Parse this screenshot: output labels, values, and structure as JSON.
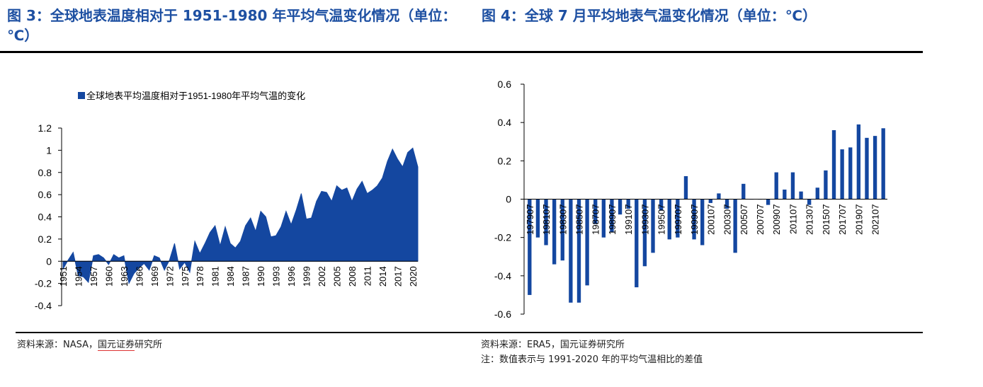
{
  "titles": {
    "fig3": "图 3：全球地表温度相对于 1951-1980 年平均气温变化情况（单位：℃）",
    "fig4": "图 4：全球 7 月平均地表气温变化情况（单位：℃）"
  },
  "sources": {
    "fig3_prefix": "资料来源：NASA，",
    "fig3_underlined": "国元证券",
    "fig3_suffix": "研究所",
    "fig4": "资料来源：ERA5，国元证券研究所",
    "fig4_note": "注：数值表示与 1991-2020 年的平均气温相比的差值"
  },
  "colors": {
    "series": "#1447a0",
    "title": "#1e50a2"
  },
  "chart_data": [
    {
      "type": "area",
      "title": "",
      "legend": "全球地表平均温度相对于1951-1980年平均气温的变化",
      "legend_position": "top-left",
      "xlabel": "",
      "ylabel": "",
      "ylim": [
        -0.4,
        1.2
      ],
      "yticks": [
        "1.2",
        "1",
        "0.8",
        "0.6",
        "0.4",
        "0.2",
        "0",
        "-0.2",
        "-0.4"
      ],
      "ytick_values": [
        1.2,
        1.0,
        0.8,
        0.6,
        0.4,
        0.2,
        0,
        -0.2,
        -0.4
      ],
      "x_tick_labels": [
        "1951",
        "1954",
        "1957",
        "1960",
        "1963",
        "1966",
        "1969",
        "1972",
        "1975",
        "1978",
        "1981",
        "1984",
        "1987",
        "1990",
        "1993",
        "1996",
        "1999",
        "2002",
        "2005",
        "2008",
        "2011",
        "2014",
        "2017",
        "2020"
      ],
      "grid": false,
      "x": [
        1951,
        1952,
        1953,
        1954,
        1955,
        1956,
        1957,
        1958,
        1959,
        1960,
        1961,
        1962,
        1963,
        1964,
        1965,
        1966,
        1967,
        1968,
        1969,
        1970,
        1971,
        1972,
        1973,
        1974,
        1975,
        1976,
        1977,
        1978,
        1979,
        1980,
        1981,
        1982,
        1983,
        1984,
        1985,
        1986,
        1987,
        1988,
        1989,
        1990,
        1991,
        1992,
        1993,
        1994,
        1995,
        1996,
        1997,
        1998,
        1999,
        2000,
        2001,
        2002,
        2003,
        2004,
        2005,
        2006,
        2007,
        2008,
        2009,
        2010,
        2011,
        2012,
        2013,
        2014,
        2015,
        2016,
        2017,
        2018,
        2019,
        2020,
        2021
      ],
      "values": [
        -0.07,
        0.01,
        0.08,
        -0.13,
        -0.14,
        -0.19,
        0.05,
        0.06,
        0.03,
        -0.03,
        0.06,
        0.03,
        0.05,
        -0.2,
        -0.11,
        -0.06,
        -0.02,
        -0.08,
        0.05,
        0.03,
        -0.08,
        0.01,
        0.16,
        -0.07,
        -0.01,
        -0.1,
        0.18,
        0.07,
        0.16,
        0.26,
        0.32,
        0.14,
        0.31,
        0.16,
        0.12,
        0.18,
        0.32,
        0.39,
        0.27,
        0.45,
        0.4,
        0.22,
        0.23,
        0.31,
        0.45,
        0.33,
        0.46,
        0.61,
        0.38,
        0.39,
        0.54,
        0.63,
        0.62,
        0.54,
        0.68,
        0.64,
        0.66,
        0.54,
        0.65,
        0.72,
        0.61,
        0.64,
        0.68,
        0.75,
        0.9,
        1.01,
        0.92,
        0.85,
        0.98,
        1.02,
        0.85
      ]
    },
    {
      "type": "bar",
      "title": "",
      "xlabel": "",
      "ylabel": "",
      "ylim": [
        -0.6,
        0.6
      ],
      "yticks": [
        "0.6",
        "0.4",
        "0.2",
        "0",
        "-0.2",
        "-0.4",
        "-0.6"
      ],
      "ytick_values": [
        0.6,
        0.4,
        0.2,
        0,
        -0.2,
        -0.4,
        -0.6
      ],
      "grid": false,
      "x_tick_labels": [
        "197907",
        "198107",
        "198307",
        "198507",
        "198707",
        "198907",
        "199107",
        "199307",
        "199507",
        "199707",
        "199907",
        "200107",
        "200307",
        "200507",
        "200707",
        "200907",
        "201107",
        "201307",
        "201507",
        "201707",
        "201907",
        "202107"
      ],
      "categories": [
        "197907",
        "198007",
        "198107",
        "198207",
        "198307",
        "198407",
        "198507",
        "198607",
        "198707",
        "198807",
        "198907",
        "199007",
        "199107",
        "199207",
        "199307",
        "199407",
        "199507",
        "199607",
        "199707",
        "199807",
        "199907",
        "200007",
        "200107",
        "200207",
        "200307",
        "200407",
        "200507",
        "200607",
        "200707",
        "200807",
        "200907",
        "201007",
        "201107",
        "201207",
        "201307",
        "201407",
        "201507",
        "201607",
        "201707",
        "201807",
        "201907",
        "202007",
        "202107",
        "202207"
      ],
      "values": [
        -0.5,
        -0.2,
        -0.24,
        -0.34,
        -0.32,
        -0.54,
        -0.54,
        -0.45,
        -0.13,
        -0.2,
        -0.17,
        -0.08,
        -0.05,
        -0.46,
        -0.35,
        -0.28,
        -0.06,
        -0.21,
        -0.2,
        0.12,
        -0.21,
        -0.24,
        -0.02,
        0.03,
        -0.05,
        -0.28,
        0.08,
        0.0,
        0.0,
        -0.03,
        0.14,
        0.05,
        0.14,
        0.04,
        -0.03,
        0.06,
        0.15,
        0.36,
        0.26,
        0.27,
        0.39,
        0.32,
        0.33,
        0.37
      ]
    }
  ]
}
